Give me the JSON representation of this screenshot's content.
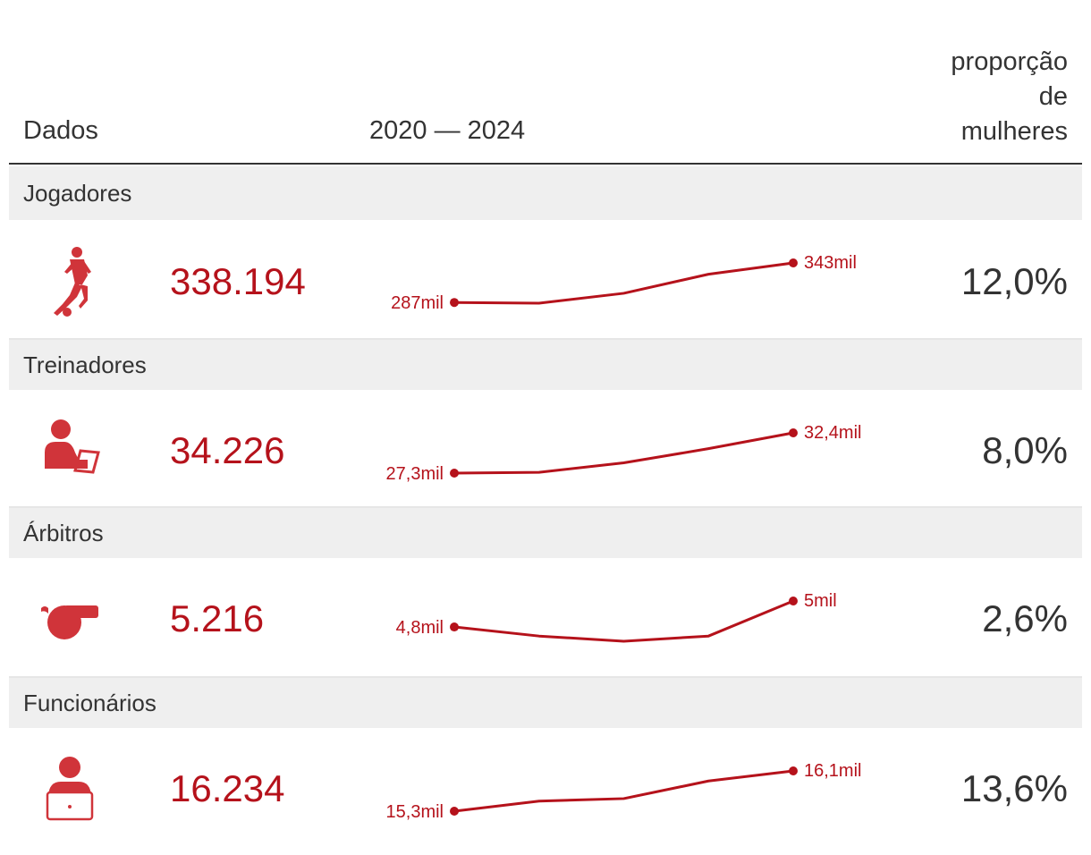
{
  "header": {
    "col_data": "Dados",
    "col_range": "2020 — 2024",
    "col_prop_lines": [
      "proporção",
      "de",
      "mulheres"
    ]
  },
  "colors": {
    "accent": "#b5121b",
    "icon": "#d0343a",
    "text": "#333333",
    "band": "#efefef"
  },
  "rows": [
    {
      "category": "Jogadores",
      "icon": "football-player-icon",
      "total": "338.194",
      "start_label": "287mil",
      "end_label": "343mil",
      "women_share": "12,0%",
      "series": [
        287,
        286,
        300,
        327,
        343
      ]
    },
    {
      "category": "Treinadores",
      "icon": "coach-with-clipboard-icon",
      "total": "34.226",
      "start_label": "27,3mil",
      "end_label": "32,4mil",
      "women_share": "8,0%",
      "series": [
        27.3,
        27.4,
        28.6,
        30.4,
        32.4
      ]
    },
    {
      "category": "Árbitros",
      "icon": "whistle-icon",
      "total": "5.216",
      "start_label": "4,8mil",
      "end_label": "5mil",
      "women_share": "2,6%",
      "series": [
        4.8,
        4.73,
        4.69,
        4.73,
        5.0
      ]
    },
    {
      "category": "Funcionários",
      "icon": "person-laptop-icon",
      "total": "16.234",
      "start_label": "15,3mil",
      "end_label": "16,1mil",
      "women_share": "13,6%",
      "series": [
        15.3,
        15.5,
        15.55,
        15.9,
        16.1
      ]
    }
  ],
  "chart_data": [
    {
      "type": "line",
      "title": "Jogadores",
      "x": [
        2020,
        2021,
        2022,
        2023,
        2024
      ],
      "series": [
        {
          "values": [
            287,
            286,
            300,
            327,
            343
          ]
        }
      ]
    },
    {
      "type": "line",
      "title": "Treinadores",
      "x": [
        2020,
        2021,
        2022,
        2023,
        2024
      ],
      "series": [
        {
          "values": [
            27.3,
            27.4,
            28.6,
            30.4,
            32.4
          ]
        }
      ]
    },
    {
      "type": "line",
      "title": "Árbitros",
      "x": [
        2020,
        2021,
        2022,
        2023,
        2024
      ],
      "series": [
        {
          "values": [
            4.8,
            4.73,
            4.69,
            4.73,
            5.0
          ]
        }
      ]
    },
    {
      "type": "line",
      "title": "Funcionários",
      "x": [
        2020,
        2021,
        2022,
        2023,
        2024
      ],
      "series": [
        {
          "values": [
            15.3,
            15.5,
            15.55,
            15.9,
            16.1
          ]
        }
      ]
    }
  ]
}
